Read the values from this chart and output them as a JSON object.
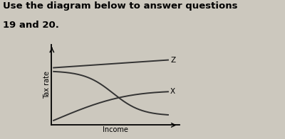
{
  "title_line1": "Use the diagram below to answer questions",
  "title_line2": "19 and 20.",
  "xlabel": "Income",
  "ylabel": "Tax rate",
  "label_z": "Z",
  "label_x": "X",
  "bg_color": "#ccc8be",
  "curve_color": "#333333",
  "title_fontsize": 9.5,
  "axis_label_fontsize": 7,
  "curve_linewidth": 1.4
}
